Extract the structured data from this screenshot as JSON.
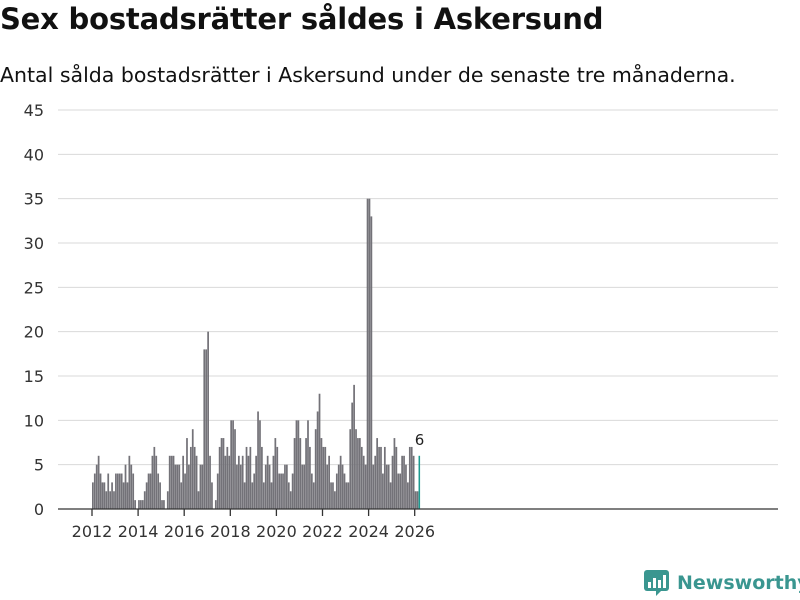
{
  "title": "Sex bostadsrätter såldes i Askersund",
  "subtitle": "Antal sålda bostadsrätter i Askersund under de senaste tre månaderna.",
  "brand": {
    "name": "Newsworthy",
    "color": "#3a9690"
  },
  "colors": {
    "bar": "#737278",
    "highlight": "#1d9a8f",
    "grid": "#d9d9d9",
    "axis": "#333333"
  },
  "chart_data": {
    "type": "bar",
    "title": "Sex bostadsrätter såldes i Askersund",
    "xlabel": "",
    "ylabel": "",
    "ylim": [
      0,
      45
    ],
    "yticks": [
      0,
      5,
      10,
      15,
      20,
      25,
      30,
      35,
      40,
      45
    ],
    "xticks": [
      "2012",
      "2014",
      "2016",
      "2018",
      "2020",
      "2022",
      "2024",
      "2026"
    ],
    "grid": true,
    "start": "2012-01",
    "frequency": "monthly",
    "values": [
      3,
      4,
      5,
      6,
      4,
      3,
      3,
      2,
      4,
      2,
      3,
      2,
      4,
      4,
      4,
      4,
      3,
      5,
      3,
      6,
      5,
      4,
      1,
      0,
      1,
      1,
      1,
      2,
      3,
      4,
      4,
      6,
      7,
      6,
      4,
      3,
      1,
      1,
      0,
      2,
      6,
      6,
      6,
      5,
      5,
      5,
      3,
      6,
      4,
      8,
      5,
      7,
      9,
      7,
      6,
      2,
      5,
      5,
      18,
      18,
      20,
      6,
      3,
      0,
      1,
      4,
      7,
      8,
      8,
      6,
      7,
      6,
      10,
      10,
      9,
      5,
      6,
      5,
      6,
      3,
      7,
      6,
      7,
      3,
      4,
      6,
      11,
      10,
      7,
      3,
      5,
      6,
      5,
      3,
      6,
      8,
      7,
      4,
      4,
      4,
      5,
      5,
      3,
      2,
      4,
      8,
      10,
      10,
      8,
      5,
      5,
      8,
      10,
      7,
      4,
      3,
      9,
      11,
      13,
      8,
      7,
      7,
      5,
      6,
      3,
      3,
      2,
      4,
      5,
      6,
      5,
      4,
      3,
      3,
      9,
      12,
      14,
      9,
      8,
      8,
      7,
      6,
      5,
      35,
      35,
      33,
      5,
      6,
      8,
      7,
      7,
      4,
      7,
      5,
      5,
      3,
      6,
      8,
      7,
      4,
      4,
      6,
      6,
      5,
      3,
      7,
      7,
      6,
      2,
      2,
      6
    ],
    "highlight_index": 170,
    "annotation": "6"
  }
}
